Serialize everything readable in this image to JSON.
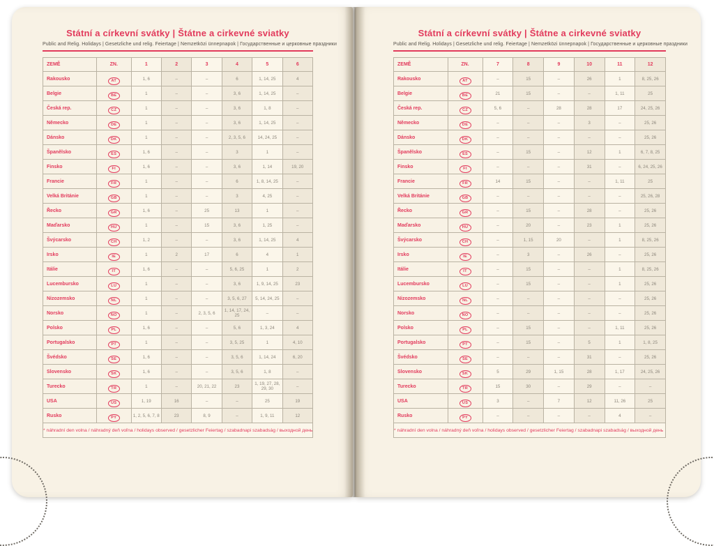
{
  "title": "Státní a církevní svátky | Štátne a cirkevné sviatky",
  "subtitle": "Public and Relig. Holidays | Gesetzliche und relig. Feiertage | Nemzetközi ünnepnapok | Государственные и церковные праздники",
  "footnote": "* náhradní den volna / náhradný deň voľna / holidays observed / gesetzlicher Feiertag / szabadnapi szabadság / выходной день",
  "header": {
    "country": "ZEMĚ",
    "code": "ZN."
  },
  "months_left": [
    "1",
    "2",
    "3",
    "4",
    "5",
    "6"
  ],
  "months_right": [
    "7",
    "8",
    "9",
    "10",
    "11",
    "12"
  ],
  "colors": {
    "accent": "#e23a5c",
    "page": "#f8f2e5",
    "col_light": "#fbf6ea",
    "col_dark": "#efe8d9",
    "grid": "#b9b2a2",
    "value_text": "#8c867b"
  },
  "rows": [
    {
      "name": "Rakousko",
      "code": "AT",
      "left": [
        "1, 6",
        "–",
        "–",
        "6",
        "1, 14, 25",
        "4"
      ],
      "right": [
        "–",
        "15",
        "–",
        "26",
        "1",
        "8, 25, 26"
      ]
    },
    {
      "name": "Belgie",
      "code": "BE",
      "left": [
        "1",
        "–",
        "–",
        "3, 6",
        "1, 14, 25",
        "–"
      ],
      "right": [
        "21",
        "15",
        "–",
        "–",
        "1, 11",
        "25"
      ]
    },
    {
      "name": "Česká rep.",
      "code": "CZ",
      "left": [
        "1",
        "–",
        "–",
        "3, 6",
        "1, 8",
        "–"
      ],
      "right": [
        "5, 6",
        "–",
        "28",
        "28",
        "17",
        "24, 25, 26"
      ]
    },
    {
      "name": "Německo",
      "code": "DE",
      "left": [
        "1",
        "–",
        "–",
        "3, 6",
        "1, 14, 25",
        "–"
      ],
      "right": [
        "–",
        "–",
        "–",
        "3",
        "–",
        "25, 26"
      ]
    },
    {
      "name": "Dánsko",
      "code": "DK",
      "left": [
        "1",
        "–",
        "–",
        "2, 3, 5, 6",
        "14, 24, 25",
        "–"
      ],
      "right": [
        "–",
        "–",
        "–",
        "–",
        "–",
        "25, 26"
      ]
    },
    {
      "name": "Španělsko",
      "code": "ES",
      "left": [
        "1, 6",
        "–",
        "–",
        "3",
        "1",
        "–"
      ],
      "right": [
        "–",
        "15",
        "–",
        "12",
        "1",
        "6, 7, 8, 25"
      ]
    },
    {
      "name": "Finsko",
      "code": "FI",
      "left": [
        "1, 6",
        "–",
        "–",
        "3, 6",
        "1, 14",
        "19, 20"
      ],
      "right": [
        "–",
        "–",
        "–",
        "31",
        "–",
        "6, 24, 25, 26"
      ]
    },
    {
      "name": "Francie",
      "code": "FR",
      "left": [
        "1",
        "–",
        "–",
        "6",
        "1, 8, 14, 25",
        "–"
      ],
      "right": [
        "14",
        "15",
        "–",
        "–",
        "1, 11",
        "25"
      ]
    },
    {
      "name": "Velká Británie",
      "code": "GB",
      "left": [
        "1",
        "–",
        "–",
        "3",
        "4, 25",
        "–"
      ],
      "right": [
        "–",
        "–",
        "–",
        "–",
        "–",
        "25, 26, 28"
      ]
    },
    {
      "name": "Řecko",
      "code": "GR",
      "left": [
        "1, 6",
        "–",
        "25",
        "13",
        "1",
        "–"
      ],
      "right": [
        "–",
        "15",
        "–",
        "28",
        "–",
        "25, 26"
      ]
    },
    {
      "name": "Maďarsko",
      "code": "HU",
      "left": [
        "1",
        "–",
        "15",
        "3, 6",
        "1, 25",
        "–"
      ],
      "right": [
        "–",
        "20",
        "–",
        "23",
        "1",
        "25, 26"
      ]
    },
    {
      "name": "Švýcarsko",
      "code": "CH",
      "left": [
        "1, 2",
        "–",
        "–",
        "3, 6",
        "1, 14, 25",
        "4"
      ],
      "right": [
        "–",
        "1, 15",
        "20",
        "–",
        "1",
        "8, 25, 26"
      ]
    },
    {
      "name": "Irsko",
      "code": "IE",
      "left": [
        "1",
        "2",
        "17",
        "6",
        "4",
        "1"
      ],
      "right": [
        "–",
        "3",
        "–",
        "26",
        "–",
        "25, 26"
      ]
    },
    {
      "name": "Itálie",
      "code": "IT",
      "left": [
        "1, 6",
        "–",
        "–",
        "5, 6, 25",
        "1",
        "2"
      ],
      "right": [
        "–",
        "15",
        "–",
        "–",
        "1",
        "8, 25, 26"
      ]
    },
    {
      "name": "Lucembursko",
      "code": "LU",
      "left": [
        "1",
        "–",
        "–",
        "3, 6",
        "1, 9, 14, 25",
        "23"
      ],
      "right": [
        "–",
        "15",
        "–",
        "–",
        "1",
        "25, 26"
      ]
    },
    {
      "name": "Nizozemsko",
      "code": "NL",
      "left": [
        "1",
        "–",
        "–",
        "3, 5, 6, 27",
        "5, 14, 24, 25",
        "–"
      ],
      "right": [
        "–",
        "–",
        "–",
        "–",
        "–",
        "25, 26"
      ]
    },
    {
      "name": "Norsko",
      "code": "NO",
      "left": [
        "1",
        "–",
        "2, 3, 5, 6",
        "1, 14, 17, 24, 25",
        "–",
        "–"
      ],
      "right": [
        "–",
        "–",
        "–",
        "–",
        "–",
        "25, 26"
      ]
    },
    {
      "name": "Polsko",
      "code": "PL",
      "left": [
        "1, 6",
        "–",
        "–",
        "5, 6",
        "1, 3, 24",
        "4"
      ],
      "right": [
        "–",
        "15",
        "–",
        "–",
        "1, 11",
        "25, 26"
      ]
    },
    {
      "name": "Portugalsko",
      "code": "PT",
      "left": [
        "1",
        "–",
        "–",
        "3, 5, 25",
        "1",
        "4, 10"
      ],
      "right": [
        "–",
        "15",
        "–",
        "5",
        "1",
        "1, 8, 25"
      ]
    },
    {
      "name": "Švédsko",
      "code": "SE",
      "left": [
        "1, 6",
        "–",
        "–",
        "3, 5, 6",
        "1, 14, 24",
        "6, 20"
      ],
      "right": [
        "–",
        "–",
        "–",
        "31",
        "–",
        "25, 26"
      ]
    },
    {
      "name": "Slovensko",
      "code": "SK",
      "left": [
        "1, 6",
        "–",
        "–",
        "3, 5, 6",
        "1, 8",
        "–"
      ],
      "right": [
        "5",
        "29",
        "1, 15",
        "28",
        "1, 17",
        "24, 25, 26"
      ]
    },
    {
      "name": "Turecko",
      "code": "TR",
      "left": [
        "1",
        "–",
        "20, 21, 22",
        "23",
        "1, 19, 27, 28, 29, 30",
        "–"
      ],
      "right": [
        "15",
        "30",
        "–",
        "29",
        "–",
        "–"
      ]
    },
    {
      "name": "USA",
      "code": "US",
      "left": [
        "1, 19",
        "16",
        "–",
        "–",
        "25",
        "19"
      ],
      "right": [
        "3",
        "–",
        "7",
        "12",
        "11, 26",
        "25"
      ]
    },
    {
      "name": "Rusko",
      "code": "PY",
      "left": [
        "1, 2, 5, 6, 7, 8",
        "23",
        "8, 9",
        "–",
        "1, 9, 11",
        "12"
      ],
      "right": [
        "–",
        "–",
        "–",
        "–",
        "4",
        "–"
      ]
    }
  ]
}
